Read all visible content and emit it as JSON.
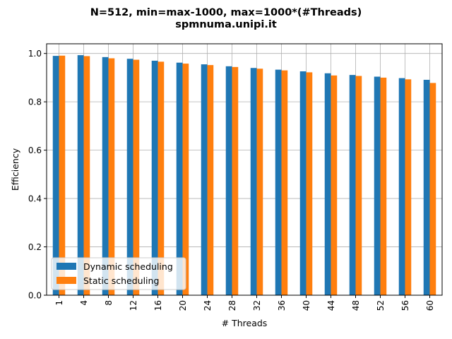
{
  "chart_data": {
    "type": "bar",
    "title": "N=512, min=max-1000, max=1000*(#Threads)",
    "subtitle": "spmnuma.unipi.it",
    "xlabel": "# Threads",
    "ylabel": "Efficiency",
    "categories": [
      "1",
      "4",
      "8",
      "12",
      "16",
      "20",
      "24",
      "28",
      "32",
      "36",
      "40",
      "44",
      "48",
      "52",
      "56",
      "60"
    ],
    "series": [
      {
        "name": "Dynamic scheduling",
        "color": "#1f77b4",
        "values": [
          0.99,
          0.993,
          0.985,
          0.978,
          0.97,
          0.962,
          0.955,
          0.947,
          0.94,
          0.933,
          0.926,
          0.918,
          0.911,
          0.904,
          0.898,
          0.891
        ]
      },
      {
        "name": "Static scheduling",
        "color": "#ff7f0e",
        "values": [
          0.991,
          0.989,
          0.98,
          0.974,
          0.966,
          0.958,
          0.952,
          0.944,
          0.937,
          0.93,
          0.922,
          0.909,
          0.907,
          0.9,
          0.893,
          0.878
        ]
      }
    ],
    "yticks": [
      "0.0",
      "0.2",
      "0.4",
      "0.6",
      "0.8",
      "1.0"
    ],
    "ylim": [
      0,
      1.04
    ],
    "grid": true,
    "legend": "lower-left"
  }
}
